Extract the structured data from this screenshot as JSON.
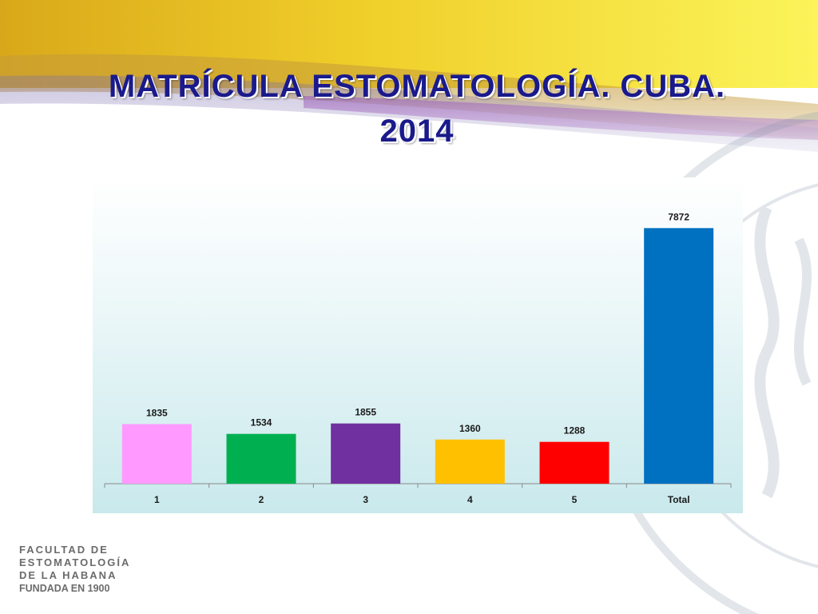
{
  "slide": {
    "title_line1": "MATRÍCULA  ESTOMATOLOGÍA. CUBA.",
    "title_line2": "2014",
    "logo_lines": [
      "FACULTAD DE",
      "ESTOMATOLOGÍA",
      "DE LA HABANA",
      "FUNDADA EN 1900"
    ]
  },
  "colors": {
    "title": "#1a1a8c",
    "top_band": "#f2d21a",
    "swoosh_purple": "#8e4fb0"
  },
  "chart_data": {
    "type": "bar",
    "categories": [
      "1",
      "2",
      "3",
      "4",
      "5",
      "Total"
    ],
    "values": [
      1835,
      1534,
      1855,
      1360,
      1288,
      7872
    ],
    "colors": [
      "#ff99ff",
      "#00b050",
      "#7030a0",
      "#ffc000",
      "#ff0000",
      "#0070c0"
    ],
    "data_labels": [
      "1835",
      "1534",
      "1855",
      "1360",
      "1288",
      "7872"
    ],
    "title": "",
    "xlabel": "",
    "ylabel": "",
    "ylim": [
      0,
      8200
    ],
    "grid": false,
    "legend": "none"
  }
}
